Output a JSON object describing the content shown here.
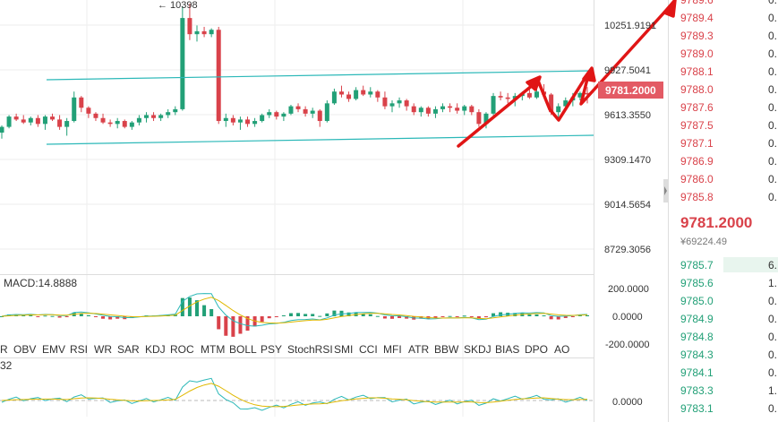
{
  "colors": {
    "up": "#22a077",
    "down": "#d9424a",
    "channel": "#2bb8b8",
    "arrow": "#e01515",
    "price_tag_bg": "#e35a64",
    "grid": "#eeeeee",
    "divider": "#dddddd",
    "macd_label": "#1aa07a",
    "kdj_label": "#e0b800",
    "ask_text": "#d9424a",
    "bid_text": "#22a077"
  },
  "main_chart": {
    "peak_label": "← 10398",
    "axis_ticks": [
      "10251.9191",
      "9927.5041",
      "9613.3550",
      "9309.1470",
      "9014.5654",
      "8729.3056"
    ],
    "last_price_tag": "9781.2000",
    "candles": [
      [
        9521,
        9570,
        9480,
        9560
      ],
      [
        9560,
        9640,
        9550,
        9630
      ],
      [
        9630,
        9650,
        9600,
        9610
      ],
      [
        9610,
        9640,
        9580,
        9590
      ],
      [
        9590,
        9630,
        9570,
        9620
      ],
      [
        9620,
        9640,
        9560,
        9580
      ],
      [
        9580,
        9640,
        9540,
        9630
      ],
      [
        9630,
        9650,
        9600,
        9610
      ],
      [
        9610,
        9640,
        9540,
        9560
      ],
      [
        9560,
        9620,
        9500,
        9600
      ],
      [
        9600,
        9800,
        9590,
        9760
      ],
      [
        9760,
        9770,
        9660,
        9690
      ],
      [
        9690,
        9700,
        9620,
        9650
      ],
      [
        9650,
        9660,
        9600,
        9620
      ],
      [
        9620,
        9650,
        9580,
        9590
      ],
      [
        9590,
        9610,
        9560,
        9580
      ],
      [
        9580,
        9620,
        9550,
        9600
      ],
      [
        9600,
        9610,
        9550,
        9560
      ],
      [
        9560,
        9600,
        9540,
        9590
      ],
      [
        9590,
        9640,
        9570,
        9620
      ],
      [
        9620,
        9660,
        9590,
        9640
      ],
      [
        9640,
        9660,
        9600,
        9620
      ],
      [
        9620,
        9650,
        9600,
        9640
      ],
      [
        9640,
        9680,
        9620,
        9660
      ],
      [
        9660,
        9700,
        9640,
        9680
      ],
      [
        9680,
        10380,
        9670,
        10300
      ],
      [
        10300,
        10398,
        10150,
        10190
      ],
      [
        10190,
        10250,
        10140,
        10210
      ],
      [
        10210,
        10240,
        10170,
        10190
      ],
      [
        10190,
        10230,
        10170,
        10220
      ],
      [
        10220,
        10240,
        9580,
        9600
      ],
      [
        9600,
        9650,
        9560,
        9620
      ],
      [
        9620,
        9640,
        9570,
        9590
      ],
      [
        9590,
        9630,
        9540,
        9610
      ],
      [
        9610,
        9630,
        9560,
        9580
      ],
      [
        9580,
        9620,
        9560,
        9600
      ],
      [
        9600,
        9650,
        9590,
        9640
      ],
      [
        9640,
        9680,
        9620,
        9660
      ],
      [
        9660,
        9670,
        9610,
        9630
      ],
      [
        9630,
        9660,
        9600,
        9650
      ],
      [
        9650,
        9710,
        9640,
        9700
      ],
      [
        9700,
        9720,
        9660,
        9680
      ],
      [
        9680,
        9700,
        9630,
        9650
      ],
      [
        9650,
        9690,
        9620,
        9670
      ],
      [
        9670,
        9680,
        9560,
        9600
      ],
      [
        9600,
        9740,
        9590,
        9720
      ],
      [
        9720,
        9820,
        9710,
        9800
      ],
      [
        9800,
        9840,
        9760,
        9780
      ],
      [
        9780,
        9800,
        9730,
        9750
      ],
      [
        9750,
        9830,
        9740,
        9810
      ],
      [
        9810,
        9840,
        9770,
        9780
      ],
      [
        9780,
        9830,
        9760,
        9800
      ],
      [
        9800,
        9810,
        9730,
        9760
      ],
      [
        9760,
        9800,
        9680,
        9700
      ],
      [
        9700,
        9740,
        9660,
        9720
      ],
      [
        9720,
        9760,
        9690,
        9740
      ],
      [
        9740,
        9750,
        9670,
        9700
      ],
      [
        9700,
        9720,
        9640,
        9660
      ],
      [
        9660,
        9700,
        9630,
        9690
      ],
      [
        9690,
        9700,
        9630,
        9650
      ],
      [
        9650,
        9700,
        9620,
        9680
      ],
      [
        9680,
        9720,
        9660,
        9700
      ],
      [
        9700,
        9720,
        9660,
        9690
      ],
      [
        9690,
        9720,
        9650,
        9670
      ],
      [
        9670,
        9710,
        9640,
        9700
      ],
      [
        9700,
        9710,
        9640,
        9660
      ],
      [
        9660,
        9680,
        9560,
        9580
      ],
      [
        9580,
        9660,
        9550,
        9650
      ],
      [
        9650,
        9790,
        9640,
        9770
      ],
      [
        9770,
        9800,
        9740,
        9760
      ],
      [
        9760,
        9790,
        9720,
        9750
      ],
      [
        9750,
        9790,
        9700,
        9770
      ],
      [
        9770,
        9800,
        9740,
        9790
      ],
      [
        9790,
        9820,
        9750,
        9760
      ],
      [
        9760,
        9820,
        9750,
        9800
      ],
      [
        9800,
        9850,
        9760,
        9780
      ],
      [
        9780,
        9790,
        9640,
        9660
      ],
      [
        9660,
        9720,
        9600,
        9700
      ],
      [
        9700,
        9760,
        9680,
        9740
      ],
      [
        9740,
        9790,
        9700,
        9760
      ],
      [
        9760,
        9800,
        9740,
        9790
      ],
      [
        9790,
        9830,
        9720,
        9781
      ]
    ]
  },
  "macd_panel": {
    "label": "MACD:14.8888",
    "axis_ticks": [
      "200.0000",
      "0.0000",
      "-200.0000"
    ]
  },
  "indicator_tabs": [
    "R",
    "OBV",
    "EMV",
    "RSI",
    "WR",
    "SAR",
    "KDJ",
    "ROC",
    "MTM",
    "BOLL",
    "PSY",
    "StochRSI",
    "SMI",
    "CCI",
    "MFI",
    "ATR",
    "BBW",
    "SKDJ",
    "BIAS",
    "DPO",
    "AO"
  ],
  "kdj_panel": {
    "label": "32",
    "axis_ticks": [
      "0.0000"
    ]
  },
  "order_book": {
    "asks": [
      {
        "price": "9789.6",
        "amount": "0."
      },
      {
        "price": "9789.4",
        "amount": "0."
      },
      {
        "price": "9789.3",
        "amount": "0."
      },
      {
        "price": "9789.0",
        "amount": "0."
      },
      {
        "price": "9788.1",
        "amount": "0."
      },
      {
        "price": "9788.0",
        "amount": "0."
      },
      {
        "price": "9787.6",
        "amount": "0."
      },
      {
        "price": "9787.5",
        "amount": "0."
      },
      {
        "price": "9787.1",
        "amount": "0."
      },
      {
        "price": "9786.9",
        "amount": "0."
      },
      {
        "price": "9786.0",
        "amount": "0."
      },
      {
        "price": "9785.8",
        "amount": "0."
      }
    ],
    "last_price": "9781.2000",
    "last_price_cny": "¥69224.49",
    "bids": [
      {
        "price": "9785.7",
        "amount": "6."
      },
      {
        "price": "9785.6",
        "amount": "1."
      },
      {
        "price": "9785.0",
        "amount": "0."
      },
      {
        "price": "9784.9",
        "amount": "0."
      },
      {
        "price": "9784.8",
        "amount": "0."
      },
      {
        "price": "9784.3",
        "amount": "0."
      },
      {
        "price": "9784.1",
        "amount": "0."
      },
      {
        "price": "9783.3",
        "amount": "1."
      },
      {
        "price": "9783.1",
        "amount": "0."
      }
    ]
  }
}
